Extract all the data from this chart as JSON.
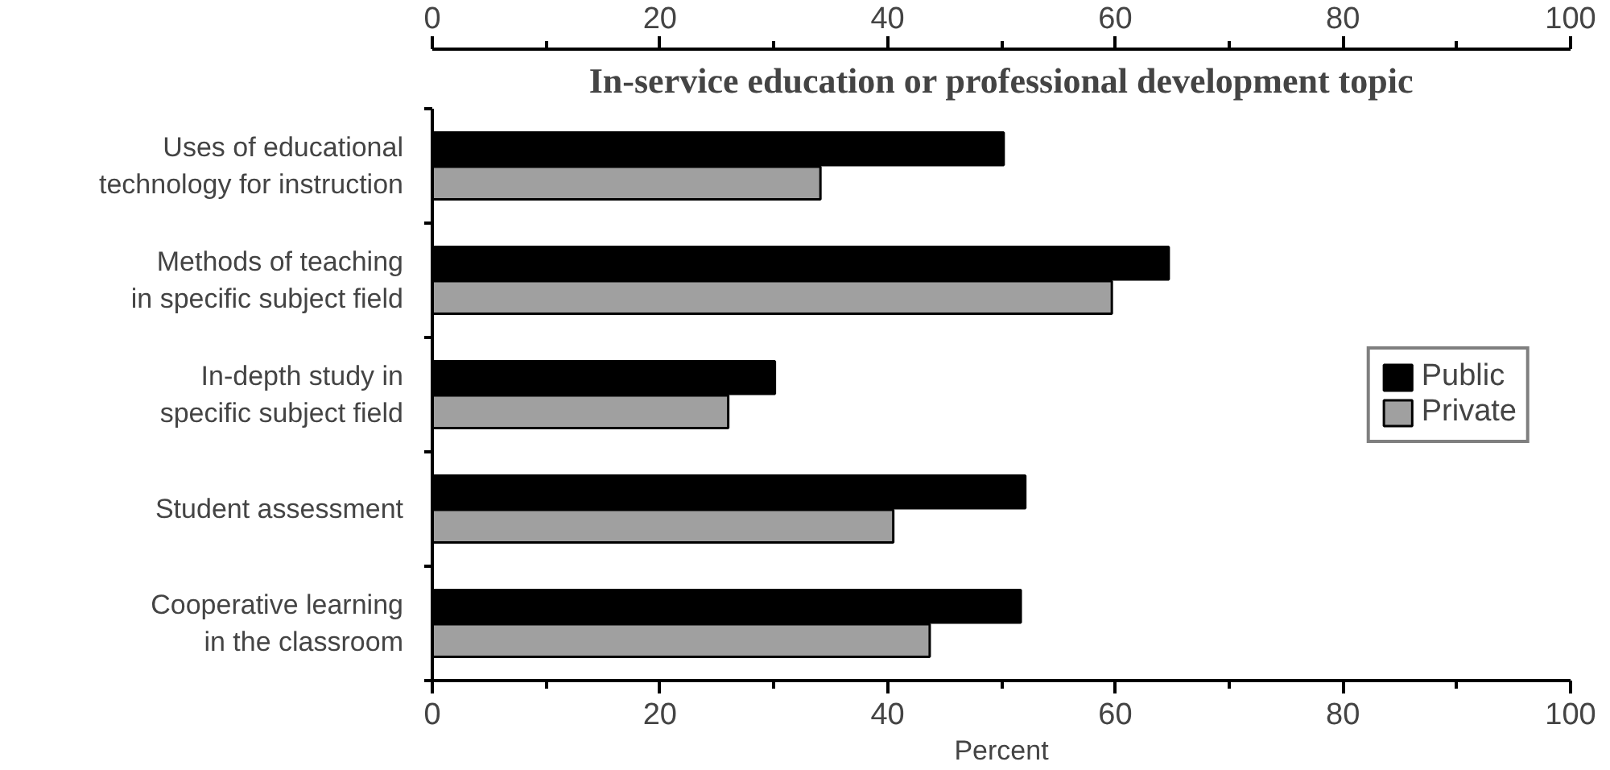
{
  "chart_data": {
    "type": "bar",
    "orientation": "horizontal",
    "title": "In-service education or professional development topic",
    "xlabel": "Percent",
    "categories": [
      "Uses of educational\ntechnology for instruction",
      "Methods of teaching\nin specific subject field",
      "In-depth study in\nspecific subject field",
      "Student assessment",
      "Cooperative learning\nin the classroom"
    ],
    "series": [
      {
        "name": "Public",
        "color": "#000000",
        "values": [
          50.2,
          64.7,
          30.1,
          52.1,
          51.7
        ]
      },
      {
        "name": "Private",
        "color": "#a0a0a0",
        "values": [
          34.1,
          59.7,
          26.0,
          40.5,
          43.7
        ]
      }
    ],
    "xlim": [
      0,
      100
    ],
    "xticks": [
      0,
      20,
      40,
      60,
      80,
      100
    ],
    "x2lim": [
      0,
      100
    ],
    "x2ticks": [
      0,
      20,
      40,
      60,
      80,
      100
    ],
    "grid": false,
    "legend": "right"
  }
}
